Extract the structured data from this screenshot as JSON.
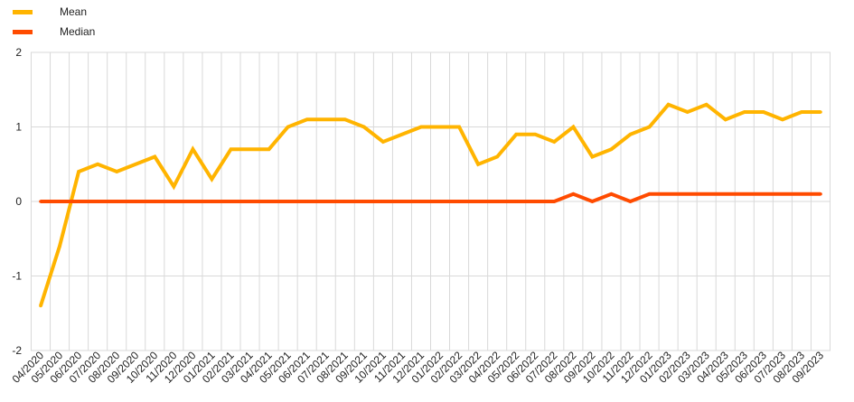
{
  "chart_data": {
    "type": "line",
    "title": "",
    "xlabel": "",
    "ylabel": "",
    "ylim": [
      -2,
      2
    ],
    "yticks": [
      -2,
      -1,
      0,
      1,
      2
    ],
    "grid": true,
    "legend_position": "top-left",
    "categories": [
      "04/2020",
      "05/2020",
      "06/2020",
      "07/2020",
      "08/2020",
      "09/2020",
      "10/2020",
      "11/2020",
      "12/2020",
      "01/2021",
      "02/2021",
      "03/2021",
      "04/2021",
      "05/2021",
      "06/2021",
      "07/2021",
      "08/2021",
      "09/2021",
      "10/2021",
      "11/2021",
      "12/2021",
      "01/2022",
      "02/2022",
      "03/2022",
      "04/2022",
      "05/2022",
      "06/2022",
      "07/2022",
      "08/2022",
      "09/2022",
      "10/2022",
      "11/2022",
      "12/2022",
      "01/2023",
      "02/2023",
      "03/2023",
      "04/2023",
      "05/2023",
      "06/2023",
      "07/2023",
      "08/2023",
      "09/2023"
    ],
    "series": [
      {
        "name": "Mean",
        "color": "#FFB400",
        "values": [
          -1.4,
          -0.6,
          0.4,
          0.5,
          0.4,
          0.5,
          0.6,
          0.2,
          0.7,
          0.3,
          0.7,
          0.7,
          0.7,
          1.0,
          1.1,
          1.1,
          1.1,
          1.0,
          0.8,
          0.9,
          1.0,
          1.0,
          1.0,
          0.5,
          0.6,
          0.9,
          0.9,
          0.8,
          1.0,
          0.6,
          0.7,
          0.9,
          1.0,
          1.3,
          1.2,
          1.3,
          1.1,
          1.2,
          1.2,
          1.1,
          1.2,
          1.2
        ]
      },
      {
        "name": "Median",
        "color": "#FF4B00",
        "values": [
          0,
          0,
          0,
          0,
          0,
          0,
          0,
          0,
          0,
          0,
          0,
          0,
          0,
          0,
          0,
          0,
          0,
          0,
          0,
          0,
          0,
          0,
          0,
          0,
          0,
          0,
          0,
          0,
          0.1,
          0,
          0.1,
          0,
          0.1,
          0.1,
          0.1,
          0.1,
          0.1,
          0.1,
          0.1,
          0.1,
          0.1,
          0.1
        ]
      }
    ]
  }
}
